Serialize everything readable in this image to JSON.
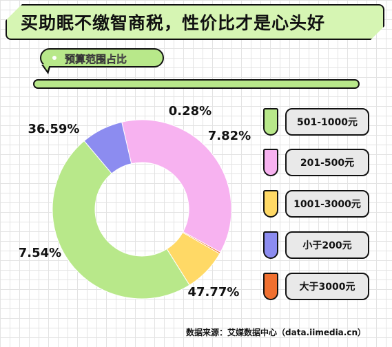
{
  "title": "买助眠不缴智商税，性价比才是心头好",
  "subtitle": "预算范围占比",
  "source": "数据来源：艾媒数据中心（data.iimedia.cn）",
  "chart_data": {
    "type": "pie",
    "categories": [
      "501-1000元",
      "201-500元",
      "1001-3000元",
      "小于200元",
      "大于3000元"
    ],
    "values": [
      47.77,
      36.59,
      7.82,
      7.54,
      0.28
    ],
    "value_labels": [
      "47.77%",
      "36.59%",
      "7.82%",
      "7.54%",
      "0.28%"
    ],
    "colors": [
      "#b8e88a",
      "#f7b2f0",
      "#ffd966",
      "#8c8cf0",
      "#f07030"
    ],
    "donut": true,
    "legend_position": "right"
  }
}
